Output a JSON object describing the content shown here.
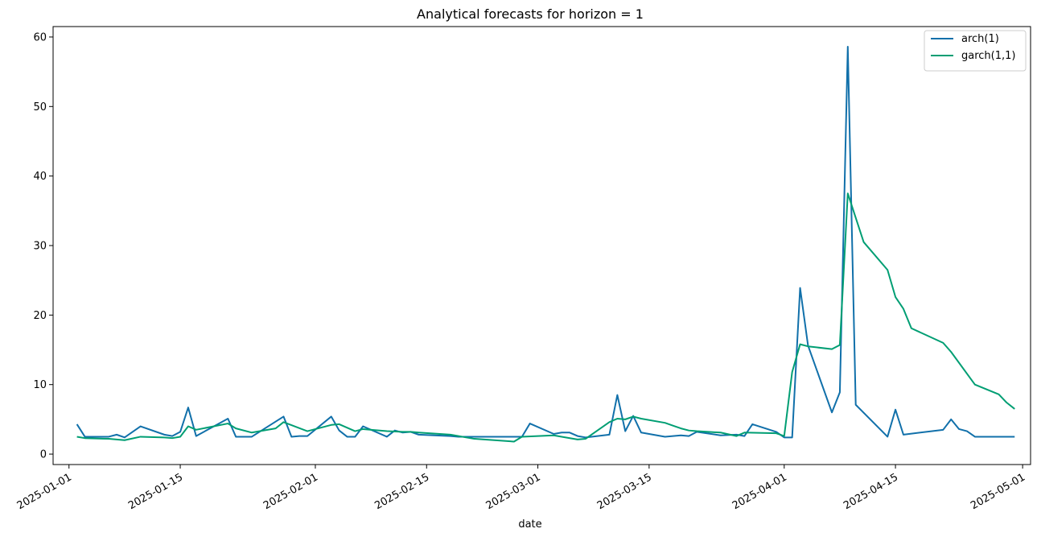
{
  "chart_data": {
    "type": "line",
    "title": "Analytical forecasts for horizon = 1",
    "xlabel": "date",
    "ylabel": "",
    "ylim": [
      -1.5,
      61.5
    ],
    "xlim": [
      "2024-12-30",
      "2025-05-02"
    ],
    "x_ticks": [
      "2025-01-01",
      "2025-01-15",
      "2025-02-01",
      "2025-02-15",
      "2025-03-01",
      "2025-03-15",
      "2025-04-01",
      "2025-04-15",
      "2025-05-01"
    ],
    "y_ticks": [
      0,
      10,
      20,
      30,
      40,
      50,
      60
    ],
    "legend_position": "top-right",
    "grid": false,
    "series": [
      {
        "name": "arch(1)",
        "color": "#1170aa",
        "x": [
          "2025-01-02",
          "2025-01-03",
          "2025-01-06",
          "2025-01-07",
          "2025-01-08",
          "2025-01-10",
          "2025-01-13",
          "2025-01-14",
          "2025-01-15",
          "2025-01-16",
          "2025-01-17",
          "2025-01-21",
          "2025-01-22",
          "2025-01-24",
          "2025-01-28",
          "2025-01-29",
          "2025-01-30",
          "2025-01-31",
          "2025-02-03",
          "2025-02-04",
          "2025-02-05",
          "2025-02-06",
          "2025-02-07",
          "2025-02-10",
          "2025-02-11",
          "2025-02-12",
          "2025-02-13",
          "2025-02-14",
          "2025-02-18",
          "2025-02-19",
          "2025-02-27",
          "2025-02-28",
          "2025-03-03",
          "2025-03-04",
          "2025-03-05",
          "2025-03-06",
          "2025-03-07",
          "2025-03-10",
          "2025-03-11",
          "2025-03-12",
          "2025-03-13",
          "2025-03-14",
          "2025-03-17",
          "2025-03-18",
          "2025-03-19",
          "2025-03-20",
          "2025-03-21",
          "2025-03-24",
          "2025-03-26",
          "2025-03-27",
          "2025-03-28",
          "2025-03-31",
          "2025-04-01",
          "2025-04-02",
          "2025-04-03",
          "2025-04-04",
          "2025-04-07",
          "2025-04-08",
          "2025-04-09",
          "2025-04-10",
          "2025-04-14",
          "2025-04-15",
          "2025-04-16",
          "2025-04-21",
          "2025-04-22",
          "2025-04-23",
          "2025-04-24",
          "2025-04-25",
          "2025-04-28",
          "2025-04-29",
          "2025-04-30"
        ],
        "y": [
          4.3,
          2.5,
          2.5,
          2.8,
          2.4,
          4.0,
          2.8,
          2.6,
          3.2,
          6.7,
          2.6,
          5.1,
          2.5,
          2.5,
          5.4,
          2.5,
          2.6,
          2.6,
          5.4,
          3.4,
          2.5,
          2.5,
          4.0,
          2.5,
          3.4,
          3.1,
          3.2,
          2.8,
          2.6,
          2.5,
          2.5,
          4.4,
          2.9,
          3.1,
          3.1,
          2.6,
          2.4,
          2.8,
          8.5,
          3.3,
          5.5,
          3.1,
          2.5,
          2.6,
          2.7,
          2.6,
          3.2,
          2.7,
          2.8,
          2.6,
          4.3,
          3.2,
          2.4,
          2.4,
          23.9,
          15.6,
          6.0,
          8.9,
          58.6,
          7.1,
          2.5,
          6.4,
          2.8,
          3.5,
          5.0,
          3.6,
          3.3,
          2.5,
          2.5,
          2.5,
          2.5
        ]
      },
      {
        "name": "garch(1,1)",
        "color": "#009e73",
        "x": [
          "2025-01-02",
          "2025-01-03",
          "2025-01-06",
          "2025-01-07",
          "2025-01-08",
          "2025-01-10",
          "2025-01-13",
          "2025-01-14",
          "2025-01-15",
          "2025-01-16",
          "2025-01-17",
          "2025-01-21",
          "2025-01-22",
          "2025-01-24",
          "2025-01-27",
          "2025-01-28",
          "2025-01-31",
          "2025-02-03",
          "2025-02-04",
          "2025-02-06",
          "2025-02-07",
          "2025-02-10",
          "2025-02-12",
          "2025-02-13",
          "2025-02-14",
          "2025-02-18",
          "2025-02-21",
          "2025-02-26",
          "2025-02-27",
          "2025-03-03",
          "2025-03-04",
          "2025-03-06",
          "2025-03-07",
          "2025-03-10",
          "2025-03-11",
          "2025-03-12",
          "2025-03-13",
          "2025-03-14",
          "2025-03-17",
          "2025-03-18",
          "2025-03-19",
          "2025-03-20",
          "2025-03-21",
          "2025-03-24",
          "2025-03-26",
          "2025-03-27",
          "2025-03-31",
          "2025-04-01",
          "2025-04-02",
          "2025-04-03",
          "2025-04-04",
          "2025-04-07",
          "2025-04-08",
          "2025-04-09",
          "2025-04-11",
          "2025-04-14",
          "2025-04-15",
          "2025-04-16",
          "2025-04-17",
          "2025-04-21",
          "2025-04-22",
          "2025-04-25",
          "2025-04-28",
          "2025-04-29",
          "2025-04-30"
        ],
        "y": [
          2.5,
          2.3,
          2.2,
          2.1,
          2.0,
          2.5,
          2.4,
          2.3,
          2.5,
          4.0,
          3.5,
          4.4,
          3.7,
          3.1,
          3.7,
          4.6,
          3.3,
          4.2,
          4.3,
          3.3,
          3.6,
          3.3,
          3.2,
          3.2,
          3.1,
          2.8,
          2.2,
          1.8,
          2.5,
          2.7,
          2.5,
          2.1,
          2.2,
          4.6,
          5.1,
          5.0,
          5.4,
          5.1,
          4.5,
          4.1,
          3.7,
          3.4,
          3.3,
          3.1,
          2.6,
          3.1,
          3.0,
          2.6,
          11.8,
          15.8,
          15.5,
          15.1,
          15.7,
          37.5,
          30.5,
          26.5,
          22.6,
          20.9,
          18.1,
          16.0,
          14.7,
          10.0,
          8.6,
          7.4,
          6.5
        ]
      }
    ]
  }
}
